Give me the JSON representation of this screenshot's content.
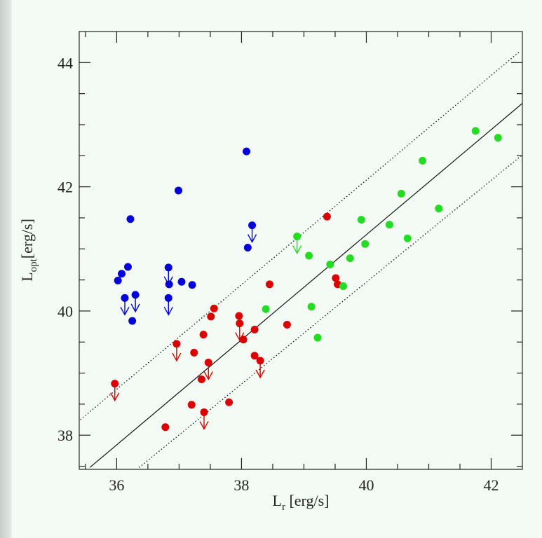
{
  "chart_data": {
    "type": "scatter",
    "x_label": [
      "L",
      "r",
      " [erg/s]"
    ],
    "y_label": [
      "L",
      "opt",
      "[erg/s]"
    ],
    "xlim": [
      35.4,
      42.5
    ],
    "ylim": [
      37.45,
      44.5
    ],
    "xticks": [
      36,
      38,
      40,
      42
    ],
    "yticks": [
      38,
      40,
      42,
      44
    ],
    "xminorticks": [
      35.5,
      36.5,
      37,
      37.5,
      38.5,
      39,
      39.5,
      40.5,
      41,
      41.5
    ],
    "yminorticks": [
      37.5,
      38.5,
      39,
      39.5,
      40.5,
      41,
      41.5,
      42.5,
      43,
      43.5
    ],
    "series": [
      {
        "color": "#0000dd",
        "x": [
          36.02,
          36.08,
          36.18,
          36.22,
          36.13,
          36.3,
          36.25,
          36.99,
          36.83,
          36.84,
          36.83,
          37.04,
          37.21,
          38.08,
          38.17,
          38.1
        ],
        "values": [
          40.49,
          40.6,
          40.71,
          41.48,
          40.21,
          40.26,
          39.84,
          41.94,
          40.7,
          40.43,
          40.21,
          40.47,
          40.42,
          42.57,
          41.38,
          41.02
        ],
        "upper_limit": [
          false,
          false,
          false,
          false,
          true,
          true,
          false,
          false,
          true,
          false,
          true,
          false,
          false,
          false,
          true,
          false
        ]
      },
      {
        "color": "#dd0000",
        "x": [
          35.97,
          36.96,
          37.24,
          37.56,
          37.51,
          37.39,
          37.47,
          37.36,
          37.2,
          37.4,
          36.78,
          37.8,
          37.96,
          37.97,
          38.03,
          38.21,
          38.21,
          38.3,
          38.45,
          38.73,
          39.37,
          39.51,
          39.54
        ],
        "values": [
          38.83,
          39.47,
          39.33,
          40.04,
          39.91,
          39.62,
          39.17,
          38.9,
          38.49,
          38.37,
          38.13,
          38.53,
          39.92,
          39.8,
          39.54,
          39.7,
          39.28,
          39.2,
          40.43,
          39.78,
          41.52,
          40.53,
          40.43
        ],
        "upper_limit": [
          true,
          true,
          false,
          false,
          false,
          false,
          true,
          false,
          false,
          true,
          false,
          false,
          false,
          true,
          false,
          false,
          false,
          true,
          false,
          false,
          false,
          false,
          false
        ]
      },
      {
        "color": "#22dd22",
        "x": [
          38.39,
          38.89,
          39.08,
          39.12,
          39.22,
          39.42,
          39.63,
          39.74,
          39.92,
          39.98,
          40.37,
          40.56,
          40.66,
          40.9,
          41.16,
          41.75,
          42.11
        ],
        "values": [
          40.03,
          41.2,
          40.89,
          40.07,
          39.57,
          40.75,
          40.4,
          40.85,
          41.47,
          41.08,
          41.39,
          41.89,
          41.17,
          42.42,
          41.65,
          42.9,
          42.79
        ],
        "upper_limit": [
          false,
          true,
          false,
          false,
          false,
          false,
          false,
          false,
          false,
          false,
          false,
          false,
          false,
          false,
          false,
          false,
          false
        ]
      }
    ],
    "lines": [
      {
        "style": "solid",
        "x": [
          35.57,
          42.52
        ],
        "y": [
          37.48,
          43.36
        ]
      },
      {
        "style": "dotted",
        "x": [
          35.42,
          42.46
        ],
        "y": [
          38.25,
          44.18
        ]
      },
      {
        "style": "dotted",
        "x": [
          36.36,
          42.52
        ],
        "y": [
          37.48,
          42.53
        ]
      }
    ]
  }
}
